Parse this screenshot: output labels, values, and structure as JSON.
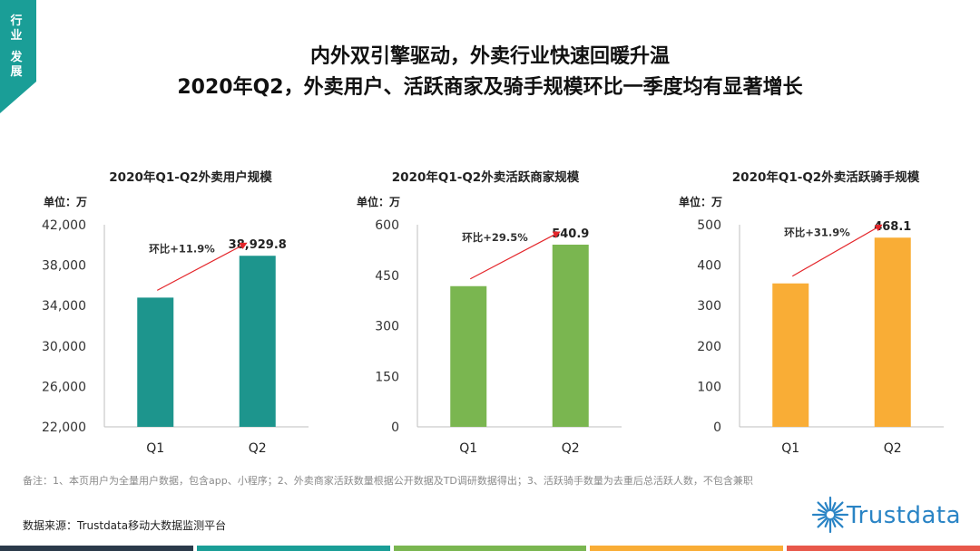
{
  "side_tab": {
    "chars": [
      "行",
      "业",
      "发",
      "展"
    ],
    "color": "#1a9e97"
  },
  "title": {
    "line1": "内外双引擎驱动，外卖行业快速回暖升温",
    "line2": "2020年Q2，外卖用户、活跃商家及骑手规模环比一季度均有显著增长"
  },
  "chart_data": [
    {
      "type": "bar",
      "title": "2020年Q1-Q2外卖用户规模",
      "unit_label": "单位：万",
      "categories": [
        "Q1",
        "Q2"
      ],
      "values": [
        34790,
        38929.8
      ],
      "value_labels": [
        "",
        "38,929.8"
      ],
      "ylim": [
        22000,
        42000
      ],
      "yticks": [
        22000,
        26000,
        30000,
        34000,
        38000,
        42000
      ],
      "ytick_labels": [
        "22,000",
        "26,000",
        "30,000",
        "34,000",
        "38,000",
        "42,000"
      ],
      "color": "#1d958d",
      "annotation": "环比+11.9%"
    },
    {
      "type": "bar",
      "title": "2020年Q1-Q2外卖活跃商家规模",
      "unit_label": "单位：万",
      "categories": [
        "Q1",
        "Q2"
      ],
      "values": [
        417.7,
        540.9
      ],
      "value_labels": [
        "",
        "540.9"
      ],
      "ylim": [
        0,
        600
      ],
      "yticks": [
        0,
        150,
        300,
        450,
        600
      ],
      "ytick_labels": [
        "0",
        "150",
        "300",
        "450",
        "600"
      ],
      "color": "#7ab650",
      "annotation": "环比+29.5%"
    },
    {
      "type": "bar",
      "title": "2020年Q1-Q2外卖活跃骑手规模",
      "unit_label": "单位：万",
      "categories": [
        "Q1",
        "Q2"
      ],
      "values": [
        354.9,
        468.1
      ],
      "value_labels": [
        "",
        "468.1"
      ],
      "ylim": [
        0,
        500
      ],
      "yticks": [
        0,
        100,
        200,
        300,
        400,
        500
      ],
      "ytick_labels": [
        "0",
        "100",
        "200",
        "300",
        "400",
        "500"
      ],
      "color": "#f9ad36",
      "annotation": "环比+31.9%"
    }
  ],
  "footer": {
    "note": "备注：1、本页用户为全量用户数据，包含app、小程序；2、外卖商家活跃数量根据公开数据及TD调研数据得出；3、活跃骑手数量为去重后总活跃人数，不包含兼职",
    "source": "数据来源：Trustdata移动大数据监测平台"
  },
  "logo": {
    "text": "Trustdata",
    "color": "#2a84c5"
  },
  "bottom_bar_colors": [
    "#2b3a4a",
    "#1a9e97",
    "#7ab650",
    "#f9ad36",
    "#e8584a"
  ],
  "annotation_arrow_color": "#e4252a"
}
